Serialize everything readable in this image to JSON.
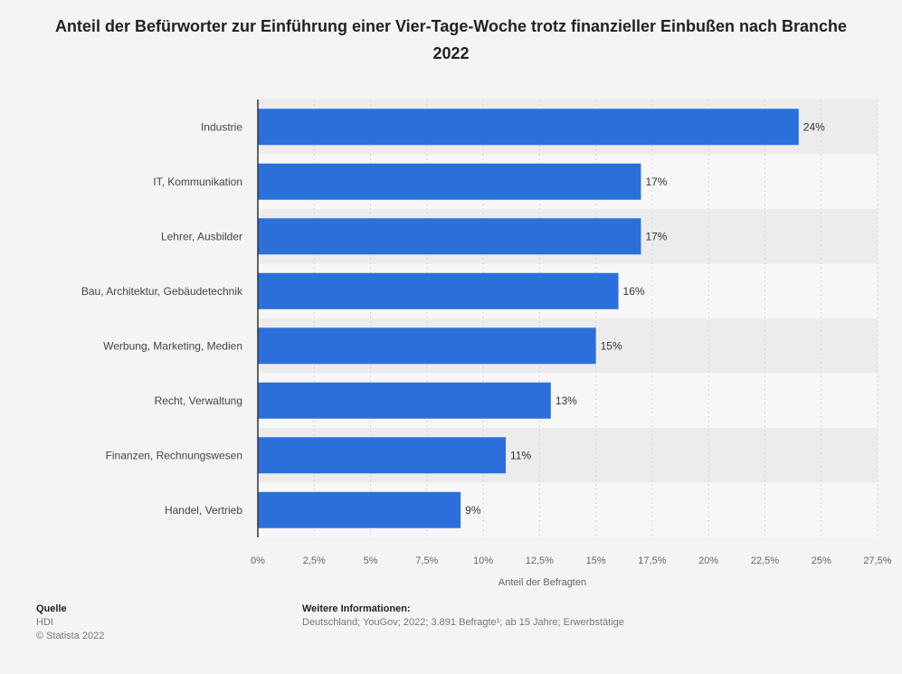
{
  "chart_data": {
    "type": "bar",
    "orientation": "horizontal",
    "title": "Anteil der Befürworter zur Einführung einer Vier-Tage-Woche trotz finanzieller Einbußen nach Branche 2022",
    "categories": [
      "Industrie",
      "IT, Kommunikation",
      "Lehrer, Ausbilder",
      "Bau, Architektur, Gebäudetechnik",
      "Werbung, Marketing, Medien",
      "Recht, Verwaltung",
      "Finanzen, Rechnungswesen",
      "Handel, Vertrieb"
    ],
    "values": [
      24,
      17,
      17,
      16,
      15,
      13,
      11,
      9
    ],
    "value_labels": [
      "24%",
      "17%",
      "17%",
      "16%",
      "15%",
      "13%",
      "11%",
      "9%"
    ],
    "xlabel": "Anteil der Befragten",
    "ylabel": "",
    "xlim": [
      0,
      27.5
    ],
    "ticks": [
      0,
      2.5,
      5,
      7.5,
      10,
      12.5,
      15,
      17.5,
      20,
      22.5,
      25,
      27.5
    ],
    "tick_labels": [
      "0%",
      "2,5%",
      "5%",
      "7,5%",
      "10%",
      "12,5%",
      "15%",
      "17,5%",
      "20%",
      "22,5%",
      "25%",
      "27,5%"
    ],
    "grid": true,
    "bar_color": "#2b6fdb"
  },
  "footer": {
    "source_label": "Quelle",
    "source_lines": [
      "HDI",
      "© Statista 2022"
    ],
    "info_label": "Weitere Informationen:",
    "info_text": "Deutschland; YouGov; 2022; 3.891 Befragte¹; ab 15 Jahre; Erwerbstätige"
  }
}
